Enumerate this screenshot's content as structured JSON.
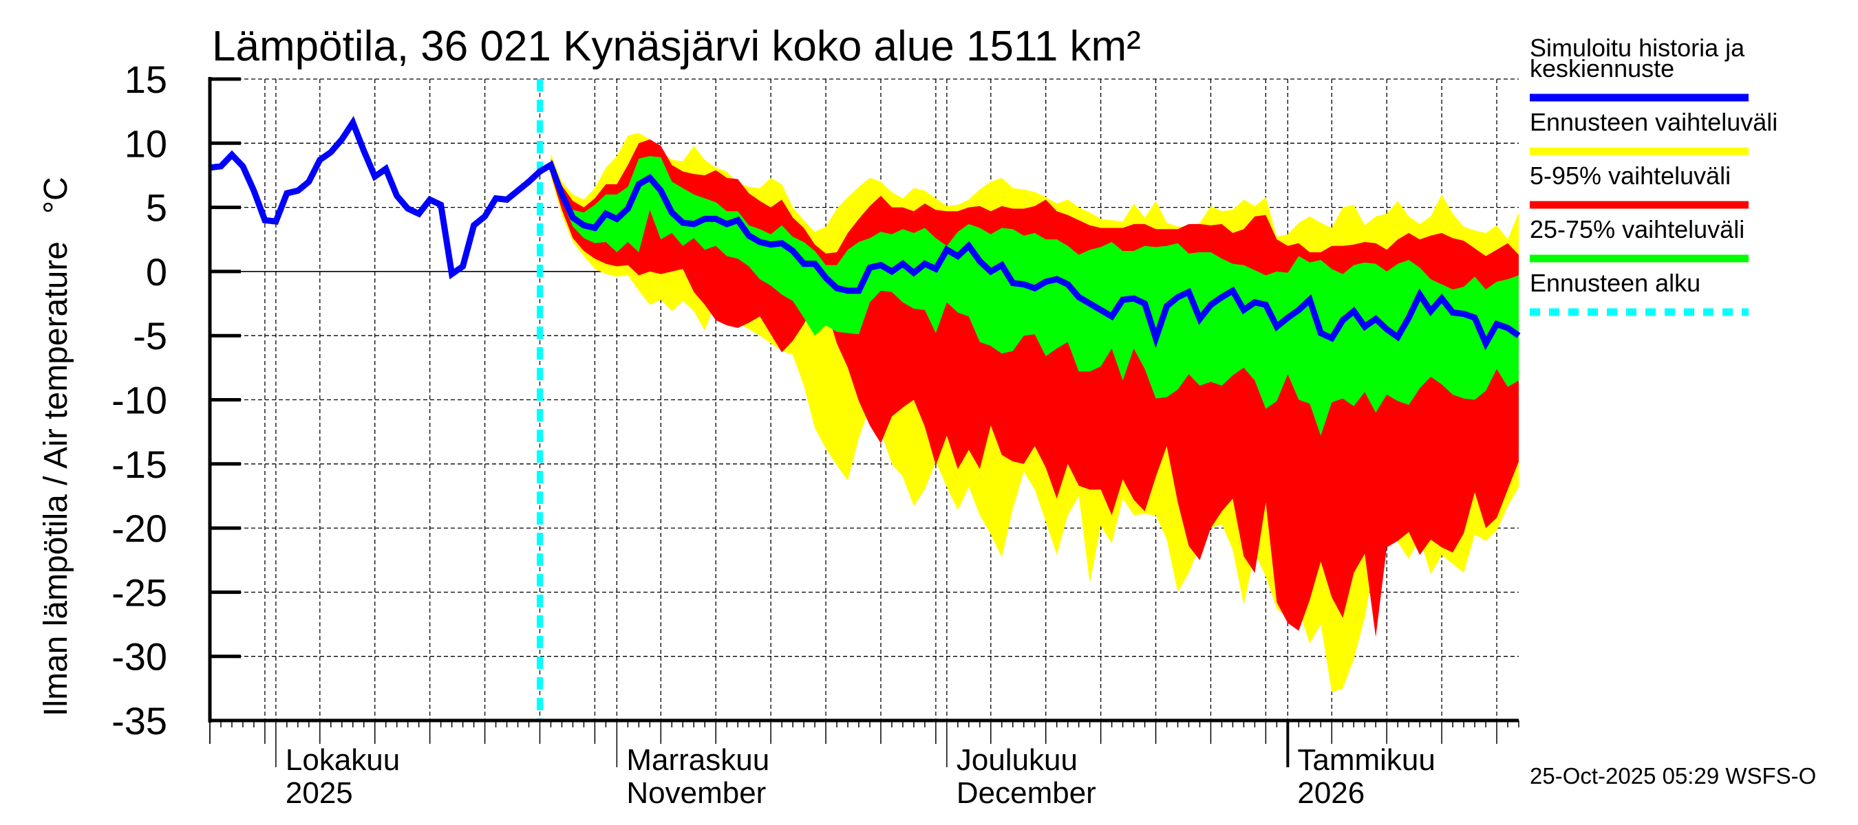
{
  "chart_data": {
    "type": "area",
    "title": "Lämpötila, 36 021 Kynäsjärvi koko alue 1511 km²",
    "ylabel": "Ilman lämpötila / Air temperature   °C",
    "xlabel": "",
    "ylim": [
      -35,
      15
    ],
    "yticks": [
      "15",
      "10",
      "5",
      "0",
      "-5",
      "-10",
      "-15",
      "-20",
      "-25",
      "-30",
      "-35"
    ],
    "ytick_values": [
      15,
      10,
      5,
      0,
      -5,
      -10,
      -15,
      -20,
      -25,
      -30,
      -35
    ],
    "x_start": "2025-09-25",
    "x_end": "2026-01-22",
    "forecast_start": "2025-10-25",
    "grid": true,
    "month_labels": [
      {
        "date": "2025-10-01",
        "line1": "Lokakuu",
        "line2": "2025"
      },
      {
        "date": "2025-11-01",
        "line1": "Marraskuu",
        "line2": "November"
      },
      {
        "date": "2025-12-01",
        "line1": "Joulukuu",
        "line2": "December"
      },
      {
        "date": "2026-01-01",
        "line1": "Tammikuu",
        "line2": "2026"
      }
    ],
    "history": {
      "name": "Simuloitu historia ja keskiennuste",
      "start_day": 0,
      "values": [
        8.1,
        8.2,
        9.1,
        8.2,
        6.3,
        4.0,
        3.9,
        6.1,
        6.3,
        7.0,
        8.7,
        9.3,
        10.3,
        11.6,
        9.4,
        7.4,
        8.0,
        5.9,
        4.9,
        4.5,
        5.6,
        5.2,
        -0.2,
        0.4,
        3.6,
        4.3,
        5.7,
        5.6,
        6.3,
        7.0,
        7.8,
        8.3
      ]
    },
    "forecast": {
      "start_day": 31,
      "median": [
        8.3,
        6.0,
        4.2,
        3.6,
        3.4,
        4.5,
        4.1,
        4.9,
        6.8,
        7.3,
        6.3,
        4.6,
        3.8,
        3.7,
        4.1,
        4.1,
        3.7,
        4.0,
        2.8,
        2.3,
        2.1,
        2.2,
        1.6,
        0.6,
        0.6,
        -0.5,
        -1.3,
        -1.5,
        -1.5,
        0.3,
        0.5,
        0.0,
        0.6,
        -0.1,
        0.6,
        0.2,
        1.7,
        1.2,
        2.0,
        0.8,
        0.0,
        0.5,
        -0.9,
        -1.0,
        -1.3,
        -0.8,
        -0.6,
        -1.0,
        -2.0,
        -2.5,
        -3.0,
        -3.5,
        -2.2,
        -2.1,
        -2.5,
        -5.2,
        -2.7,
        -2.0,
        -1.6,
        -3.7,
        -2.6,
        -2.0,
        -1.5,
        -3.0,
        -2.4,
        -2.6,
        -4.3,
        -3.6,
        -3.0,
        -2.2,
        -4.8,
        -5.2,
        -3.8,
        -3.1,
        -4.3,
        -3.7,
        -4.5,
        -5.1,
        -3.6,
        -1.8,
        -3.1,
        -2.1,
        -3.2,
        -3.3,
        -3.6,
        -5.6,
        -4.1,
        -4.4,
        -5.0
      ],
      "p25": [
        7.8,
        5.5,
        3.5,
        2.6,
        2.2,
        2.3,
        1.5,
        2.3,
        1.5,
        4.8,
        2.5,
        3.0,
        2.0,
        2.6,
        1.7,
        2.0,
        1.2,
        1.0,
        0.4,
        -0.6,
        -1.1,
        -1.8,
        -2.3,
        -3.6,
        -5.0,
        -4.2,
        -4.7,
        -4.8,
        -4.9,
        -2.4,
        -1.5,
        -1.6,
        -2.4,
        -2.9,
        -3.0,
        -4.8,
        -2.4,
        -3.2,
        -3.5,
        -5.5,
        -5.8,
        -6.4,
        -6.2,
        -5.0,
        -4.9,
        -6.6,
        -6.0,
        -5.5,
        -7.8,
        -7.8,
        -7.4,
        -6.0,
        -8.5,
        -6.0,
        -7.6,
        -9.9,
        -9.8,
        -9.2,
        -8.0,
        -8.9,
        -8.6,
        -8.9,
        -8.1,
        -7.5,
        -8.5,
        -10.7,
        -10.1,
        -8.0,
        -10.0,
        -10.3,
        -12.8,
        -10.2,
        -9.9,
        -10.5,
        -9.4,
        -11.0,
        -9.6,
        -10.1,
        -10.4,
        -9.1,
        -8.2,
        -8.8,
        -9.6,
        -9.9,
        -10.0,
        -9.3,
        -7.6,
        -9.0,
        -8.5
      ],
      "p75": [
        8.4,
        6.4,
        4.8,
        4.6,
        5.2,
        6.0,
        6.0,
        6.6,
        8.8,
        9.0,
        8.9,
        7.0,
        6.5,
        6.0,
        5.7,
        5.4,
        4.7,
        4.7,
        3.6,
        3.3,
        2.9,
        3.6,
        2.7,
        2.3,
        1.6,
        0.5,
        0.5,
        1.7,
        2.3,
        2.6,
        3.1,
        2.9,
        3.3,
        3.0,
        3.4,
        2.6,
        2.0,
        3.1,
        3.7,
        3.4,
        2.9,
        3.4,
        3.3,
        2.8,
        3.0,
        2.5,
        2.5,
        2.0,
        1.3,
        1.7,
        1.9,
        2.3,
        1.6,
        1.6,
        2.0,
        1.9,
        2.0,
        2.2,
        1.4,
        1.5,
        1.5,
        1.0,
        0.6,
        0.5,
        0.1,
        -0.3,
        0.0,
        -0.1,
        1.2,
        0.7,
        0.9,
        0.2,
        -0.2,
        0.5,
        0.7,
        0.6,
        0.0,
        0.6,
        0.9,
        0.3,
        -0.6,
        -1.0,
        -1.4,
        -1.2,
        -0.4,
        -1.4,
        -0.8,
        -0.6,
        -0.3
      ],
      "p05": [
        7.6,
        4.8,
        2.6,
        1.6,
        1.0,
        0.6,
        0.4,
        0.5,
        -0.3,
        0.0,
        -0.2,
        0.0,
        0.2,
        -1.6,
        -2.6,
        -3.8,
        -4.2,
        -4.4,
        -4.0,
        -3.5,
        -4.9,
        -6.3,
        -5.4,
        -4.1,
        -2.5,
        -2.8,
        -5.6,
        -7.5,
        -10.1,
        -12.0,
        -13.4,
        -11.3,
        -10.6,
        -10.0,
        -12.1,
        -15.1,
        -12.8,
        -15.4,
        -13.9,
        -15.4,
        -12.0,
        -14.3,
        -14.8,
        -15.0,
        -13.6,
        -15.3,
        -17.7,
        -15.0,
        -16.7,
        -17.0,
        -17.0,
        -19.0,
        -16.2,
        -17.8,
        -18.7,
        -16.0,
        -13.6,
        -18.0,
        -21.4,
        -22.5,
        -20.0,
        -18.7,
        -17.7,
        -22.2,
        -23.5,
        -18.0,
        -25.8,
        -27.4,
        -28.0,
        -25.6,
        -22.6,
        -25.4,
        -27.0,
        -23.5,
        -22.0,
        -28.5,
        -21.5,
        -21.0,
        -20.3,
        -22.1,
        -20.9,
        -21.5,
        -21.9,
        -20.4,
        -17.2,
        -20.0,
        -19.2,
        -17.0,
        -14.8
      ],
      "p95": [
        8.8,
        6.7,
        5.5,
        5.0,
        5.7,
        6.8,
        6.8,
        8.3,
        10.0,
        10.3,
        9.8,
        8.3,
        7.8,
        7.6,
        7.5,
        7.9,
        7.3,
        7.2,
        6.1,
        5.5,
        5.0,
        5.6,
        4.2,
        3.4,
        2.1,
        1.4,
        1.5,
        3.0,
        4.1,
        5.1,
        5.9,
        5.0,
        5.0,
        4.7,
        5.3,
        4.8,
        4.7,
        4.7,
        5.0,
        5.1,
        4.7,
        5.1,
        4.9,
        4.9,
        5.1,
        5.6,
        4.7,
        4.4,
        4.0,
        3.6,
        3.4,
        3.4,
        3.4,
        3.7,
        3.7,
        3.3,
        3.3,
        3.3,
        3.7,
        3.7,
        3.6,
        3.7,
        3.0,
        3.3,
        4.3,
        4.4,
        2.5,
        2.0,
        2.2,
        1.5,
        1.5,
        2.0,
        2.0,
        2.1,
        2.3,
        2.2,
        1.7,
        2.5,
        3.0,
        2.5,
        2.8,
        3.0,
        2.6,
        2.4,
        1.8,
        1.2,
        1.7,
        2.2,
        1.3
      ],
      "min": [
        7.4,
        4.4,
        2.3,
        1.2,
        0.2,
        -0.2,
        -0.4,
        -0.3,
        -1.5,
        -2.6,
        -2.2,
        -3.1,
        -2.3,
        -3.1,
        -4.6,
        -2.3,
        -2.9,
        -4.0,
        -4.5,
        -5.0,
        -5.6,
        -6.2,
        -6.5,
        -8.9,
        -12.2,
        -13.8,
        -15.1,
        -16.3,
        -13.0,
        -10.5,
        -12.5,
        -15.0,
        -16.0,
        -18.3,
        -17.0,
        -14.8,
        -16.8,
        -18.6,
        -16.8,
        -19.0,
        -20.5,
        -22.3,
        -18.5,
        -15.6,
        -17.0,
        -19.5,
        -22.1,
        -19.0,
        -17.5,
        -24.3,
        -19.8,
        -21.2,
        -17.7,
        -19.0,
        -18.9,
        -19.0,
        -20.9,
        -25.0,
        -23.5,
        -21.4,
        -20.0,
        -19.7,
        -21.7,
        -26.0,
        -21.9,
        -23.8,
        -26.3,
        -27.0,
        -26.4,
        -29.0,
        -27.5,
        -32.8,
        -32.5,
        -30.2,
        -27.0,
        -22.2,
        -20.4,
        -21.1,
        -22.4,
        -20.8,
        -23.6,
        -22.1,
        -22.8,
        -23.5,
        -20.5,
        -21.0,
        -20.2,
        -18.3,
        -16.8
      ],
      "max": [
        9.2,
        7.0,
        6.0,
        5.6,
        6.5,
        8.1,
        9.0,
        10.6,
        10.8,
        10.3,
        9.4,
        8.7,
        8.6,
        9.8,
        8.7,
        8.1,
        7.8,
        6.9,
        6.6,
        6.5,
        7.3,
        6.8,
        5.0,
        4.0,
        3.1,
        3.5,
        4.9,
        5.8,
        6.6,
        7.3,
        7.0,
        6.2,
        5.7,
        6.5,
        6.3,
        5.7,
        5.1,
        5.2,
        5.6,
        6.4,
        7.0,
        7.3,
        6.5,
        6.4,
        6.2,
        5.8,
        5.3,
        5.6,
        5.0,
        4.6,
        4.1,
        4.0,
        3.9,
        5.3,
        4.2,
        5.5,
        3.8,
        3.5,
        3.5,
        3.8,
        5.1,
        4.7,
        4.8,
        5.6,
        5.1,
        5.8,
        2.7,
        2.9,
        3.8,
        4.3,
        3.8,
        3.4,
        5.0,
        5.2,
        3.6,
        4.3,
        4.5,
        5.5,
        4.3,
        3.7,
        4.3,
        6.0,
        4.5,
        3.5,
        3.2,
        3.0,
        3.6,
        2.5,
        4.6
      ]
    },
    "legend": {
      "items": [
        {
          "label": "Simuloitu historia ja keskiennuste",
          "line1": "Simuloitu historia ja",
          "line2": "keskiennuste",
          "color": "#0000ff",
          "style": "solid"
        },
        {
          "label": "Ennusteen vaihteluväli",
          "color": "#ffff00",
          "style": "solid"
        },
        {
          "label": "5-95% vaihteluväli",
          "color": "#ff0000",
          "style": "solid"
        },
        {
          "label": "25-75% vaihteluväli",
          "color": "#00ff00",
          "style": "solid"
        },
        {
          "label": "Ennusteen alku",
          "color": "#00ffff",
          "style": "dotted"
        }
      ]
    },
    "colors": {
      "history": "#0000ff",
      "range": "#ffff00",
      "p5_95": "#ff0000",
      "p25_75": "#00ff00",
      "forecast_start": "#00ffff"
    }
  },
  "footer": {
    "timestamp": "25-Oct-2025 05:29 WSFS-O"
  }
}
